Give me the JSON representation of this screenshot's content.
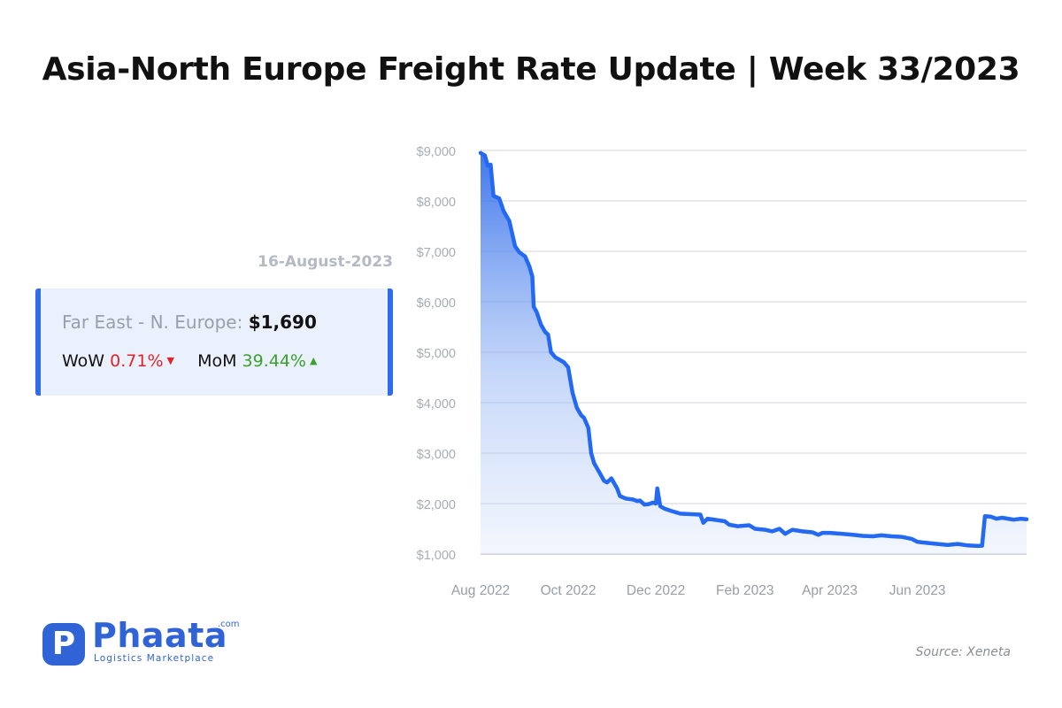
{
  "header": {
    "title": "Asia-North Europe Freight Rate Update | Week 33/2023"
  },
  "card": {
    "date": "16-August-2023",
    "route_label": "Far East - N. Europe:",
    "price": "$1,690",
    "wow_label": "WoW",
    "wow_value": "0.71%",
    "mom_label": "MoM",
    "mom_value": "39.44%"
  },
  "logo": {
    "mark": "P",
    "name": "Phaata",
    "com": ".com",
    "tagline": "Logistics Marketplace"
  },
  "source": "Source: Xeneta",
  "colors": {
    "accent": "#2f6bea",
    "line": "#2469f2",
    "down": "#e0252a",
    "up": "#3aa02e",
    "card_bg": "#eaf1fd"
  },
  "icons": {
    "wow_direction": "caret-down-icon",
    "mom_direction": "caret-up-icon"
  },
  "chart_data": {
    "type": "area",
    "title": "",
    "xlabel": "",
    "ylabel": "",
    "x_start": "2022-08-01",
    "x_end": "2023-08-16",
    "x_ticks": [
      {
        "date": "2022-08-01",
        "label": "Aug 2022"
      },
      {
        "date": "2022-10-01",
        "label": "Oct 2022"
      },
      {
        "date": "2022-12-01",
        "label": "Dec 2022"
      },
      {
        "date": "2023-02-01",
        "label": "Feb 2023"
      },
      {
        "date": "2023-04-01",
        "label": "Apr 2023"
      },
      {
        "date": "2023-06-01",
        "label": "Jun 2023"
      }
    ],
    "y_ticks": [
      {
        "value": 1000,
        "label": "$1,000"
      },
      {
        "value": 2000,
        "label": "$2,000"
      },
      {
        "value": 3000,
        "label": "$3,000"
      },
      {
        "value": 4000,
        "label": "$4,000"
      },
      {
        "value": 5000,
        "label": "$5,000"
      },
      {
        "value": 6000,
        "label": "$6,000"
      },
      {
        "value": 7000,
        "label": "$7,000"
      },
      {
        "value": 8000,
        "label": "$8,000"
      },
      {
        "value": 9000,
        "label": "$9,000"
      }
    ],
    "ylim": [
      1000,
      9000
    ],
    "grid": true,
    "series": [
      {
        "points": [
          [
            "2022-08-01",
            8950
          ],
          [
            "2022-08-04",
            8900
          ],
          [
            "2022-08-06",
            8700
          ],
          [
            "2022-08-08",
            8720
          ],
          [
            "2022-08-10",
            8100
          ],
          [
            "2022-08-14",
            8050
          ],
          [
            "2022-08-17",
            7800
          ],
          [
            "2022-08-21",
            7600
          ],
          [
            "2022-08-25",
            7100
          ],
          [
            "2022-08-28",
            6980
          ],
          [
            "2022-09-01",
            6900
          ],
          [
            "2022-09-04",
            6700
          ],
          [
            "2022-09-06",
            6500
          ],
          [
            "2022-09-07",
            5900
          ],
          [
            "2022-09-09",
            5800
          ],
          [
            "2022-09-12",
            5550
          ],
          [
            "2022-09-15",
            5400
          ],
          [
            "2022-09-17",
            5350
          ],
          [
            "2022-09-19",
            5000
          ],
          [
            "2022-09-22",
            4900
          ],
          [
            "2022-09-25",
            4850
          ],
          [
            "2022-09-28",
            4800
          ],
          [
            "2022-10-01",
            4700
          ],
          [
            "2022-10-04",
            4200
          ],
          [
            "2022-10-07",
            3900
          ],
          [
            "2022-10-10",
            3750
          ],
          [
            "2022-10-12",
            3700
          ],
          [
            "2022-10-15",
            3500
          ],
          [
            "2022-10-17",
            3000
          ],
          [
            "2022-10-19",
            2800
          ],
          [
            "2022-10-23",
            2600
          ],
          [
            "2022-10-26",
            2450
          ],
          [
            "2022-10-28",
            2420
          ],
          [
            "2022-10-31",
            2500
          ],
          [
            "2022-11-04",
            2300
          ],
          [
            "2022-11-06",
            2150
          ],
          [
            "2022-11-10",
            2100
          ],
          [
            "2022-11-15",
            2080
          ],
          [
            "2022-11-18",
            2050
          ],
          [
            "2022-11-20",
            2060
          ],
          [
            "2022-11-23",
            1980
          ],
          [
            "2022-11-26",
            1990
          ],
          [
            "2022-11-29",
            2020
          ],
          [
            "2022-12-01",
            2000
          ],
          [
            "2022-12-02",
            2300
          ],
          [
            "2022-12-04",
            1950
          ],
          [
            "2022-12-07",
            1900
          ],
          [
            "2022-12-12",
            1850
          ],
          [
            "2022-12-18",
            1800
          ],
          [
            "2023-01-01",
            1780
          ],
          [
            "2023-01-03",
            1620
          ],
          [
            "2023-01-06",
            1700
          ],
          [
            "2023-01-18",
            1650
          ],
          [
            "2023-01-21",
            1580
          ],
          [
            "2023-01-27",
            1550
          ],
          [
            "2023-02-04",
            1570
          ],
          [
            "2023-02-08",
            1500
          ],
          [
            "2023-02-15",
            1480
          ],
          [
            "2023-02-20",
            1450
          ],
          [
            "2023-02-25",
            1500
          ],
          [
            "2023-03-01",
            1400
          ],
          [
            "2023-03-06",
            1480
          ],
          [
            "2023-03-13",
            1450
          ],
          [
            "2023-03-20",
            1430
          ],
          [
            "2023-03-24",
            1380
          ],
          [
            "2023-03-27",
            1420
          ],
          [
            "2023-04-01",
            1420
          ],
          [
            "2023-04-10",
            1400
          ],
          [
            "2023-04-17",
            1380
          ],
          [
            "2023-04-24",
            1360
          ],
          [
            "2023-05-01",
            1350
          ],
          [
            "2023-05-07",
            1370
          ],
          [
            "2023-05-14",
            1350
          ],
          [
            "2023-05-21",
            1340
          ],
          [
            "2023-05-28",
            1300
          ],
          [
            "2023-06-01",
            1240
          ],
          [
            "2023-06-08",
            1220
          ],
          [
            "2023-06-15",
            1200
          ],
          [
            "2023-06-22",
            1180
          ],
          [
            "2023-06-29",
            1200
          ],
          [
            "2023-07-06",
            1170
          ],
          [
            "2023-07-13",
            1160
          ],
          [
            "2023-07-16",
            1165
          ],
          [
            "2023-07-18",
            1750
          ],
          [
            "2023-07-22",
            1740
          ],
          [
            "2023-07-26",
            1700
          ],
          [
            "2023-07-30",
            1720
          ],
          [
            "2023-08-03",
            1700
          ],
          [
            "2023-08-07",
            1680
          ],
          [
            "2023-08-12",
            1700
          ],
          [
            "2023-08-16",
            1690
          ]
        ]
      }
    ]
  }
}
